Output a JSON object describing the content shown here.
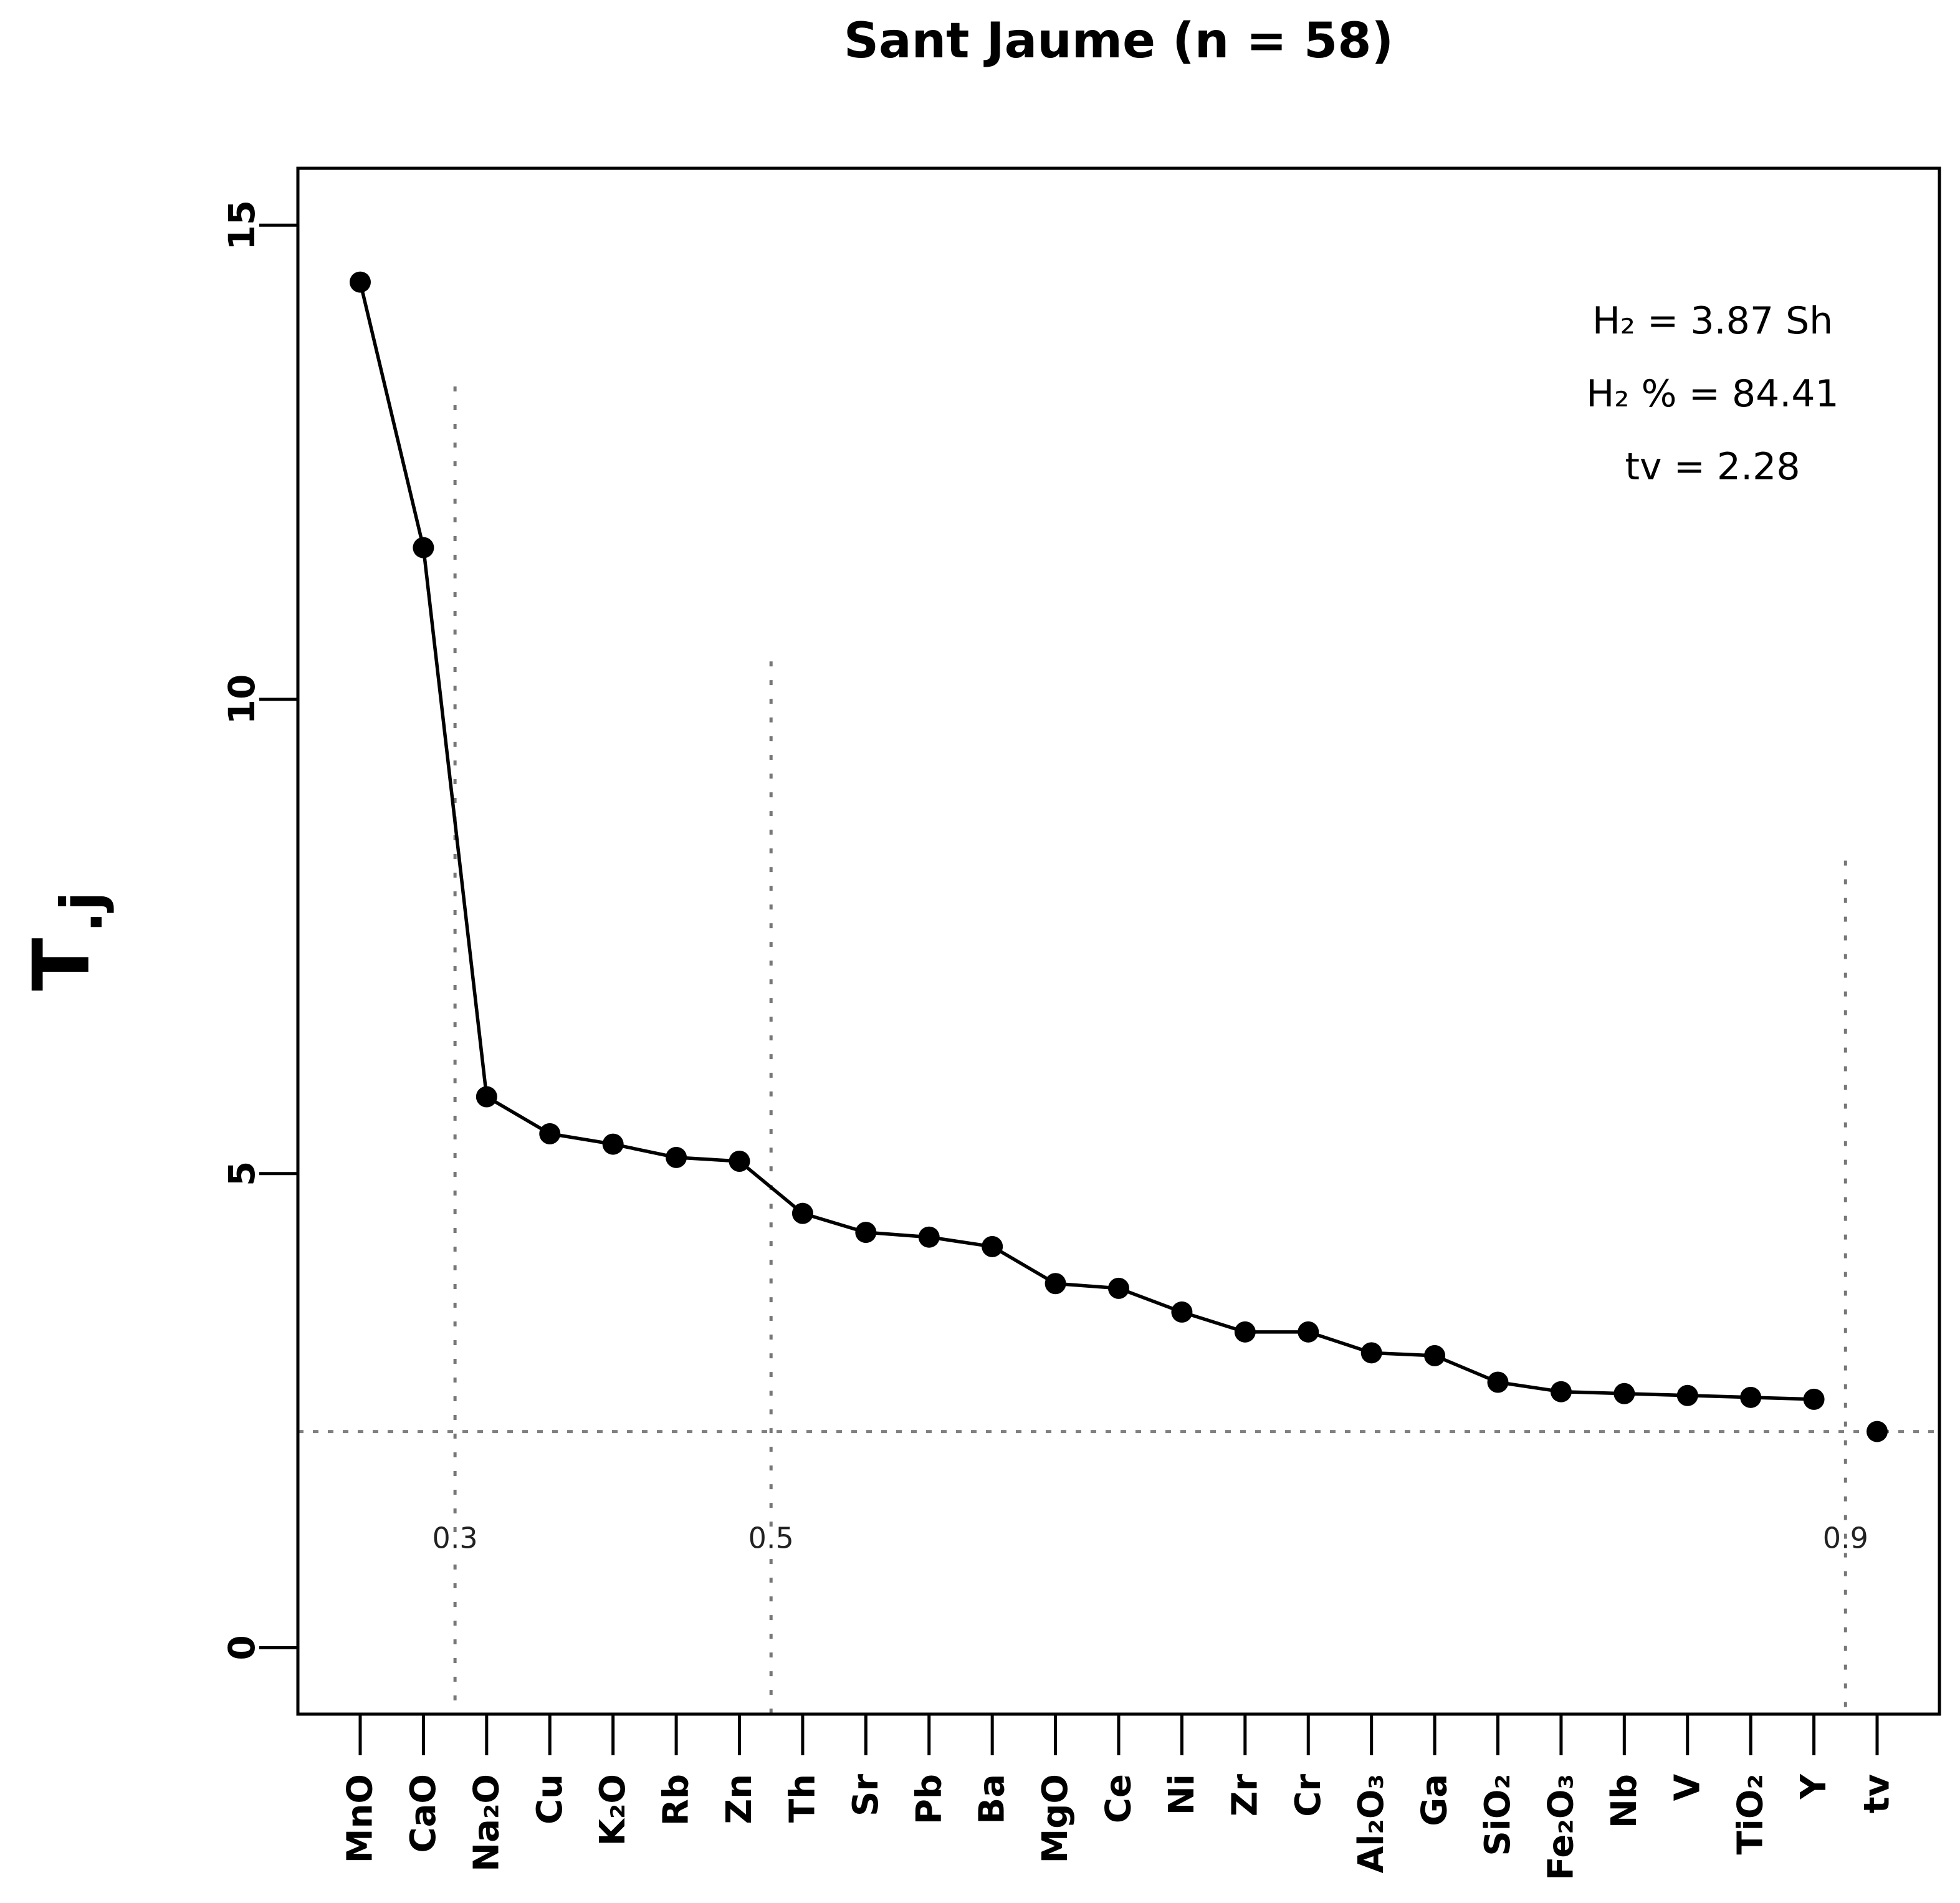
{
  "title": "Sant Jaume (n = 58)",
  "annotations": {
    "lines": [
      "H₂ = 3.87 Sh",
      "H₂ % = 84.41",
      "tv = 2.28"
    ]
  },
  "chart_data": {
    "type": "line",
    "title": "Sant Jaume (n = 58)",
    "xlabel": "",
    "ylabel": "T.j",
    "ylabel_main": "T",
    "ylabel_sub": ".j",
    "categories": [
      "MnO",
      "CaO",
      "Na₂O",
      "Cu",
      "K₂O",
      "Rb",
      "Zn",
      "Th",
      "Sr",
      "Pb",
      "Ba",
      "MgO",
      "Ce",
      "Ni",
      "Zr",
      "Cr",
      "Al₂O₃",
      "Ga",
      "SiO₂",
      "Fe₂O₃",
      "Nb",
      "V",
      "TiO₂",
      "Y",
      "tv"
    ],
    "values": [
      14.4,
      11.6,
      5.81,
      5.42,
      5.31,
      5.17,
      5.13,
      4.58,
      4.38,
      4.33,
      4.23,
      3.84,
      3.79,
      3.54,
      3.33,
      3.33,
      3.11,
      3.08,
      2.8,
      2.7,
      2.68,
      2.66,
      2.64,
      2.62,
      2.28
    ],
    "connected_point_count": 24,
    "yticks": [
      0,
      5,
      10,
      15
    ],
    "ylim": [
      -0.7,
      15.6
    ],
    "grid": false,
    "legend": "none",
    "marker": "filled-circle",
    "line_color": "#000000",
    "point_color": "#000000",
    "guide_color": "#808080",
    "guide_label_color": "#222222",
    "hline": {
      "value": 2.28
    },
    "vlines": [
      {
        "label": "0.3",
        "after_index": 1,
        "top_value": 13.3
      },
      {
        "label": "0.5",
        "after_index": 6,
        "top_value": 10.4
      },
      {
        "label": "0.9",
        "after_index": 23,
        "top_value": 8.3
      }
    ],
    "vline_label_value": 1.05
  }
}
